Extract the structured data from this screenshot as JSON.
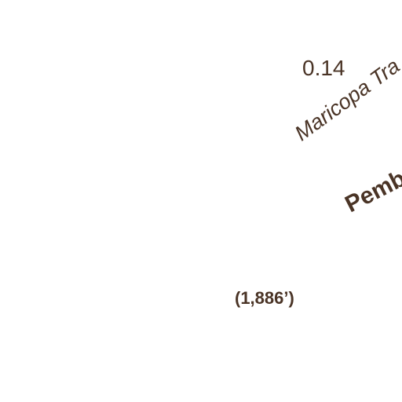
{
  "map": {
    "segment_distance": "0.14",
    "trail_label": "Maricopa Tra",
    "feature_label": "Pemb",
    "elevation_label": "(1,886’)",
    "text_color": "#4a3426",
    "background_color": "#ffffff"
  }
}
